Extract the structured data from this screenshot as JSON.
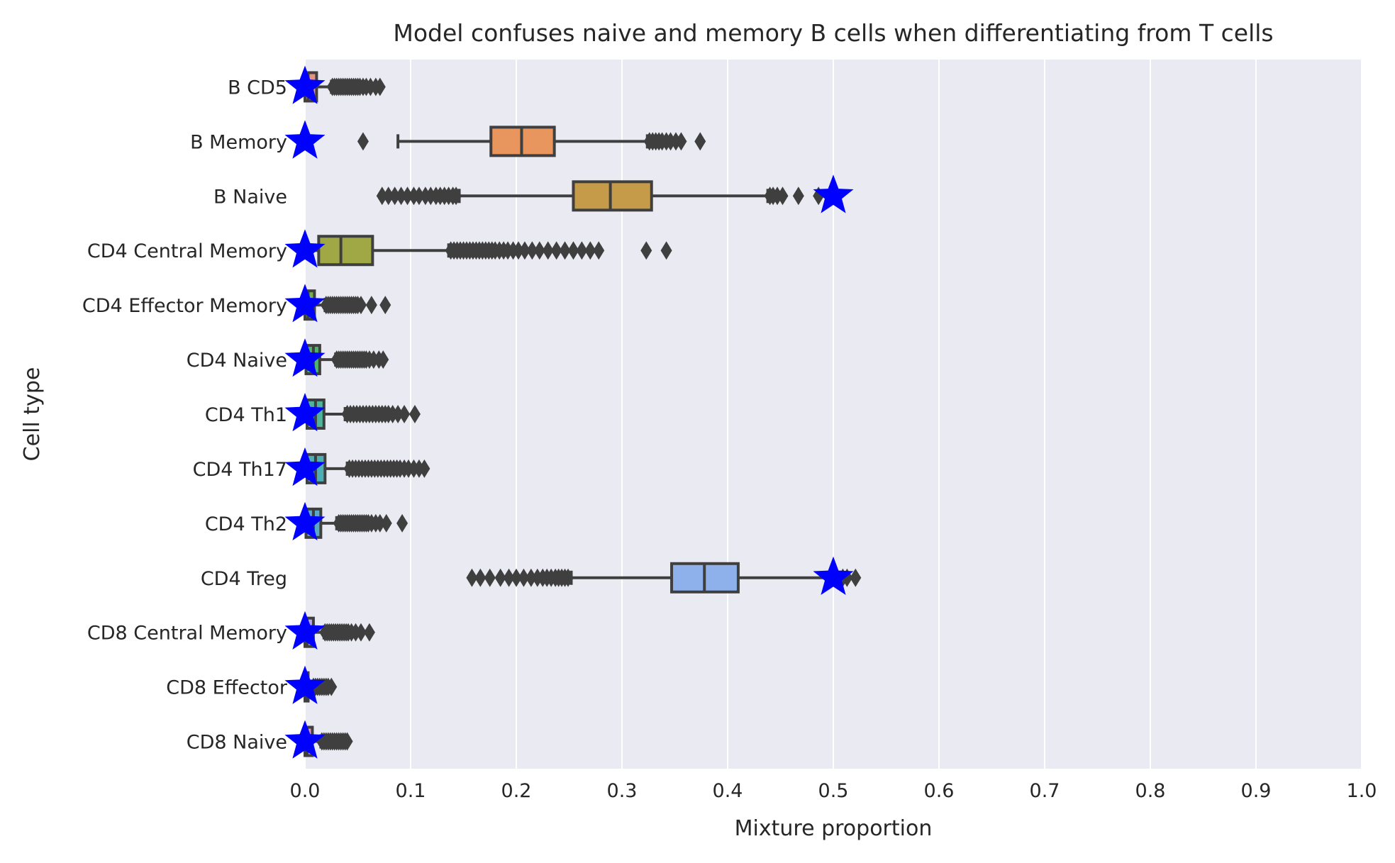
{
  "chart_data": {
    "type": "box",
    "orientation": "horizontal",
    "title": "Model confuses naive and memory B cells when differentiating from T cells",
    "xlabel": "Mixture proportion",
    "ylabel": "Cell type",
    "xlim": [
      0.0,
      1.0
    ],
    "xticks": [
      "0.0",
      "0.1",
      "0.2",
      "0.3",
      "0.4",
      "0.5",
      "0.6",
      "0.7",
      "0.8",
      "0.9",
      "1.0"
    ],
    "grid": true,
    "categories": [
      "B CD5",
      "B Memory",
      "B Naive",
      "CD4 Central Memory",
      "CD4 Effector Memory",
      "CD4 Naive",
      "CD4 Th1",
      "CD4 Th17",
      "CD4 Th2",
      "CD4 Treg",
      "CD8 Central Memory",
      "CD8 Effector",
      "CD8 Naive"
    ],
    "colors": {
      "background": "#eaeaf2",
      "grid": "#ffffff",
      "box_edge": "#3f3f3f",
      "star": "#0000ff",
      "boxes": [
        "#e8927d",
        "#e8955e",
        "#c59a48",
        "#a0a845",
        "#75b04c",
        "#4eb36d",
        "#4eb59c",
        "#4dafb5",
        "#58a9c6",
        "#8eb1ec",
        "#b5a6ec",
        "#d59ae6",
        "#e892c2"
      ]
    },
    "boxes": [
      {
        "q1": 0.0,
        "median": 0.003,
        "q3": 0.011,
        "whisker_low": 0.0,
        "whisker_high": 0.025,
        "outliers": [
          0.026,
          0.028,
          0.03,
          0.032,
          0.034,
          0.036,
          0.038,
          0.04,
          0.042,
          0.044,
          0.046,
          0.048,
          0.05,
          0.052,
          0.055,
          0.058,
          0.062,
          0.067,
          0.071
        ]
      },
      {
        "q1": 0.176,
        "median": 0.205,
        "q3": 0.236,
        "whisker_low": 0.088,
        "whisker_high": 0.324,
        "outliers": [
          0.055,
          0.326,
          0.329,
          0.332,
          0.335,
          0.338,
          0.342,
          0.346,
          0.351,
          0.356,
          0.374
        ]
      },
      {
        "q1": 0.254,
        "median": 0.289,
        "q3": 0.328,
        "whisker_low": 0.146,
        "whisker_high": 0.438,
        "outliers": [
          0.073,
          0.079,
          0.085,
          0.091,
          0.097,
          0.103,
          0.108,
          0.114,
          0.119,
          0.124,
          0.128,
          0.132,
          0.136,
          0.14,
          0.143,
          0.44,
          0.443,
          0.447,
          0.452,
          0.467,
          0.486
        ]
      },
      {
        "q1": 0.013,
        "median": 0.034,
        "q3": 0.064,
        "whisker_low": 0.0,
        "whisker_high": 0.136,
        "outliers": [
          0.138,
          0.141,
          0.144,
          0.147,
          0.15,
          0.153,
          0.156,
          0.159,
          0.162,
          0.165,
          0.168,
          0.171,
          0.174,
          0.177,
          0.18,
          0.184,
          0.188,
          0.192,
          0.197,
          0.202,
          0.208,
          0.215,
          0.222,
          0.23,
          0.238,
          0.246,
          0.254,
          0.262,
          0.27,
          0.278,
          0.323,
          0.342
        ]
      },
      {
        "q1": 0.0,
        "median": 0.003,
        "q3": 0.009,
        "whisker_low": 0.0,
        "whisker_high": 0.019,
        "outliers": [
          0.02,
          0.022,
          0.024,
          0.026,
          0.028,
          0.03,
          0.032,
          0.034,
          0.036,
          0.038,
          0.04,
          0.042,
          0.044,
          0.046,
          0.048,
          0.05,
          0.053,
          0.063,
          0.076
        ]
      },
      {
        "q1": 0.001,
        "median": 0.008,
        "q3": 0.014,
        "whisker_low": 0.0,
        "whisker_high": 0.029,
        "outliers": [
          0.03,
          0.032,
          0.034,
          0.036,
          0.038,
          0.04,
          0.042,
          0.044,
          0.046,
          0.048,
          0.05,
          0.052,
          0.054,
          0.056,
          0.058,
          0.061,
          0.065,
          0.07,
          0.074
        ]
      },
      {
        "q1": 0.002,
        "median": 0.01,
        "q3": 0.018,
        "whisker_low": 0.0,
        "whisker_high": 0.038,
        "outliers": [
          0.04,
          0.043,
          0.046,
          0.049,
          0.052,
          0.055,
          0.058,
          0.061,
          0.064,
          0.067,
          0.07,
          0.073,
          0.076,
          0.079,
          0.083,
          0.088,
          0.094,
          0.104
        ]
      },
      {
        "q1": 0.002,
        "median": 0.01,
        "q3": 0.019,
        "whisker_low": 0.0,
        "whisker_high": 0.04,
        "outliers": [
          0.042,
          0.045,
          0.048,
          0.051,
          0.054,
          0.057,
          0.06,
          0.063,
          0.066,
          0.069,
          0.072,
          0.075,
          0.078,
          0.081,
          0.084,
          0.087,
          0.09,
          0.094,
          0.098,
          0.103,
          0.108,
          0.113
        ]
      },
      {
        "q1": 0.001,
        "median": 0.008,
        "q3": 0.015,
        "whisker_low": 0.0,
        "whisker_high": 0.03,
        "outliers": [
          0.032,
          0.034,
          0.036,
          0.038,
          0.04,
          0.042,
          0.044,
          0.046,
          0.048,
          0.05,
          0.052,
          0.054,
          0.056,
          0.058,
          0.06,
          0.063,
          0.067,
          0.071,
          0.077,
          0.092
        ]
      },
      {
        "q1": 0.347,
        "median": 0.378,
        "q3": 0.41,
        "whisker_low": 0.252,
        "whisker_high": 0.507,
        "outliers": [
          0.158,
          0.166,
          0.175,
          0.185,
          0.193,
          0.2,
          0.207,
          0.214,
          0.22,
          0.225,
          0.229,
          0.233,
          0.237,
          0.24,
          0.243,
          0.246,
          0.249,
          0.509,
          0.513,
          0.521
        ]
      },
      {
        "q1": 0.0,
        "median": 0.002,
        "q3": 0.008,
        "whisker_low": 0.0,
        "whisker_high": 0.018,
        "outliers": [
          0.019,
          0.021,
          0.023,
          0.025,
          0.027,
          0.029,
          0.031,
          0.033,
          0.035,
          0.037,
          0.039,
          0.041,
          0.044,
          0.048,
          0.053,
          0.061
        ]
      },
      {
        "q1": 0.0,
        "median": 0.001,
        "q3": 0.003,
        "whisker_low": 0.0,
        "whisker_high": 0.007,
        "outliers": [
          0.008,
          0.01,
          0.012,
          0.014,
          0.016,
          0.018,
          0.02,
          0.022,
          0.025
        ]
      },
      {
        "q1": 0.0,
        "median": 0.002,
        "q3": 0.007,
        "whisker_low": 0.0,
        "whisker_high": 0.015,
        "outliers": [
          0.016,
          0.018,
          0.02,
          0.022,
          0.024,
          0.026,
          0.028,
          0.03,
          0.032,
          0.034,
          0.036,
          0.038,
          0.04
        ]
      }
    ],
    "true_values": [
      0.0,
      0.0,
      0.5,
      0.0,
      0.0,
      0.0,
      0.0,
      0.0,
      0.0,
      0.5,
      0.0,
      0.0,
      0.0
    ]
  }
}
